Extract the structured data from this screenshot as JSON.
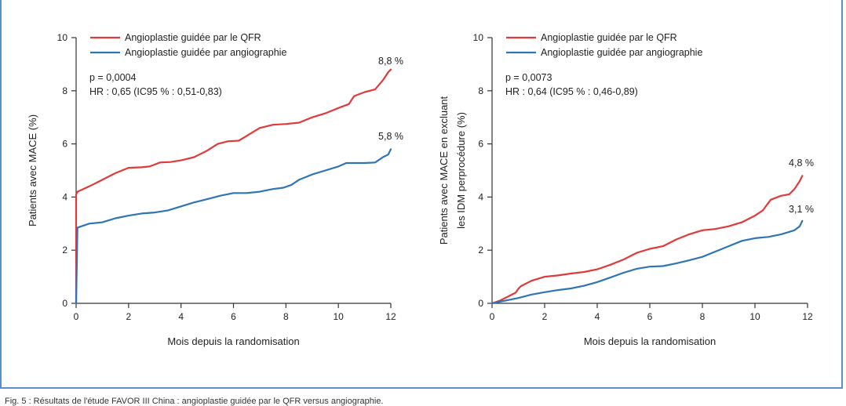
{
  "caption": "Fig. 5 : Résultats de l'étude FAVOR III China : angioplastie guidée par le QFR versus angiographie.",
  "colors": {
    "qfr": "#e03a3a",
    "angio": "#2f74b5",
    "frame": "#5b8fc7",
    "axis": "#333333"
  },
  "chart_data": [
    {
      "type": "line",
      "xlabel": "Mois depuis la randomisation",
      "ylabel": [
        "Patients avec MACE (%)"
      ],
      "xlim": [
        0,
        12
      ],
      "ylim": [
        0,
        10
      ],
      "xticks": [
        0,
        2,
        4,
        6,
        8,
        10,
        12
      ],
      "yticks": [
        0,
        2,
        4,
        6,
        8,
        10
      ],
      "grid": false,
      "legend": "top-left",
      "annotations": [
        "p = 0,0004",
        "HR : 0,65 (IC95 % : 0,51-0,83)"
      ],
      "series": [
        {
          "name": "Angioplastie guidée par le QFR",
          "end_label": "8,8 %",
          "x": [
            0,
            0,
            0.05,
            0.5,
            1.0,
            1.5,
            2.0,
            2.5,
            2.8,
            3.2,
            3.6,
            4.0,
            4.5,
            5.0,
            5.4,
            5.8,
            6.2,
            6.5,
            7.0,
            7.5,
            8.0,
            8.5,
            9.0,
            9.5,
            10.0,
            10.4,
            10.6,
            11.0,
            11.4,
            11.7,
            11.9,
            12.0
          ],
          "y": [
            0,
            4.1,
            4.2,
            4.4,
            4.65,
            4.9,
            5.1,
            5.12,
            5.15,
            5.3,
            5.32,
            5.38,
            5.5,
            5.75,
            6.0,
            6.1,
            6.12,
            6.3,
            6.6,
            6.72,
            6.75,
            6.8,
            7.0,
            7.15,
            7.35,
            7.5,
            7.8,
            7.95,
            8.05,
            8.4,
            8.7,
            8.8
          ]
        },
        {
          "name": "Angioplastie guidée par angiographie",
          "end_label": "5,8 %",
          "x": [
            0,
            0.05,
            0.5,
            1.0,
            1.5,
            2.0,
            2.5,
            3.0,
            3.5,
            4.0,
            4.5,
            5.0,
            5.5,
            6.0,
            6.5,
            7.0,
            7.5,
            7.9,
            8.2,
            8.5,
            9.0,
            9.5,
            10.0,
            10.3,
            10.6,
            11.0,
            11.4,
            11.7,
            11.9,
            12.0
          ],
          "y": [
            0,
            2.85,
            3.0,
            3.05,
            3.2,
            3.3,
            3.38,
            3.42,
            3.5,
            3.65,
            3.8,
            3.92,
            4.05,
            4.15,
            4.15,
            4.2,
            4.3,
            4.35,
            4.45,
            4.65,
            4.85,
            5.0,
            5.15,
            5.28,
            5.28,
            5.28,
            5.3,
            5.5,
            5.6,
            5.8
          ]
        }
      ]
    },
    {
      "type": "line",
      "xlabel": "Mois depuis la randomisation",
      "ylabel": [
        "Patients avec MACE en excluant",
        "les IDM perprocédure (%)"
      ],
      "xlim": [
        0,
        12
      ],
      "ylim": [
        0,
        10
      ],
      "xticks": [
        0,
        2,
        4,
        6,
        8,
        10,
        12
      ],
      "yticks": [
        0,
        2,
        4,
        6,
        8,
        10
      ],
      "grid": false,
      "legend": "top-left",
      "annotations": [
        "p = 0,0073",
        "HR : 0,64 (IC95 % : 0,46-0,89)"
      ],
      "series": [
        {
          "name": "Angioplastie guidée par le QFR",
          "end_label": "4,8 %",
          "x": [
            0,
            0.3,
            0.6,
            0.9,
            1.0,
            1.1,
            1.5,
            2.0,
            2.5,
            3.0,
            3.5,
            4.0,
            4.5,
            5.0,
            5.5,
            6.0,
            6.5,
            7.0,
            7.5,
            8.0,
            8.5,
            9.0,
            9.5,
            10.0,
            10.3,
            10.6,
            11.0,
            11.3,
            11.5,
            11.7,
            11.8
          ],
          "y": [
            0,
            0.1,
            0.25,
            0.4,
            0.55,
            0.65,
            0.85,
            1.0,
            1.05,
            1.12,
            1.18,
            1.28,
            1.45,
            1.65,
            1.9,
            2.05,
            2.15,
            2.4,
            2.6,
            2.75,
            2.8,
            2.9,
            3.05,
            3.3,
            3.5,
            3.9,
            4.05,
            4.1,
            4.3,
            4.6,
            4.8
          ]
        },
        {
          "name": "Angioplastie guidée par angiographie",
          "end_label": "3,1 %",
          "x": [
            0,
            0.5,
            1.0,
            1.5,
            2.0,
            2.5,
            3.0,
            3.5,
            4.0,
            4.5,
            5.0,
            5.5,
            6.0,
            6.5,
            7.0,
            7.5,
            8.0,
            8.5,
            9.0,
            9.5,
            10.0,
            10.5,
            11.0,
            11.5,
            11.7,
            11.8
          ],
          "y": [
            0,
            0.1,
            0.2,
            0.33,
            0.42,
            0.5,
            0.56,
            0.66,
            0.8,
            0.97,
            1.15,
            1.3,
            1.38,
            1.4,
            1.5,
            1.62,
            1.75,
            1.95,
            2.15,
            2.35,
            2.45,
            2.5,
            2.6,
            2.75,
            2.9,
            3.1
          ]
        }
      ]
    }
  ]
}
